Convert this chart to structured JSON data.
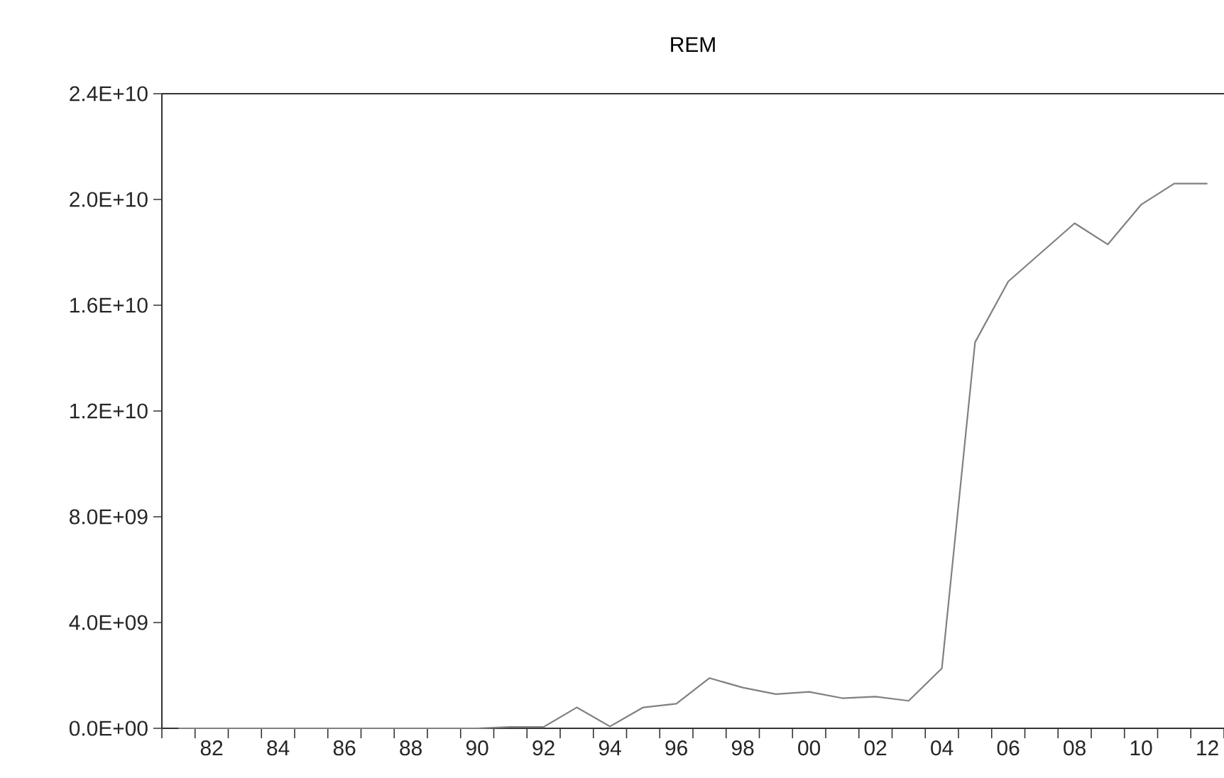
{
  "chart_data": {
    "type": "line",
    "title": "REM",
    "x": [
      1981,
      1982,
      1983,
      1984,
      1985,
      1986,
      1987,
      1988,
      1989,
      1990,
      1991,
      1992,
      1993,
      1994,
      1995,
      1996,
      1997,
      1998,
      1999,
      2000,
      2001,
      2002,
      2003,
      2004,
      2005,
      2006,
      2007,
      2008,
      2009,
      2010,
      2011,
      2012
    ],
    "series": [
      {
        "color": "#808080",
        "values": [
          0,
          0,
          0,
          0,
          0,
          0,
          0,
          0,
          0,
          0,
          50000000,
          50000000,
          790000000,
          70000000,
          790000000,
          930000000,
          1900000000,
          1540000000,
          1290000000,
          1380000000,
          1140000000,
          1200000000,
          1040000000,
          2270000000,
          14600000000,
          16900000000,
          18000000000,
          19100000000,
          18300000000,
          19800000000,
          20600000000,
          20600000000
        ]
      }
    ],
    "xlim": [
      1980.5,
      2012.5
    ],
    "xticks": [
      {
        "value": 1980.5,
        "label": null
      },
      {
        "value": 1981.5,
        "label": null
      },
      {
        "value": 1982,
        "label": "82"
      },
      {
        "value": 1982.5,
        "label": null
      },
      {
        "value": 1983.5,
        "label": null
      },
      {
        "value": 1984,
        "label": "84"
      },
      {
        "value": 1984.5,
        "label": null
      },
      {
        "value": 1985.5,
        "label": null
      },
      {
        "value": 1986,
        "label": "86"
      },
      {
        "value": 1986.5,
        "label": null
      },
      {
        "value": 1987.5,
        "label": null
      },
      {
        "value": 1988,
        "label": "88"
      },
      {
        "value": 1988.5,
        "label": null
      },
      {
        "value": 1989.5,
        "label": null
      },
      {
        "value": 1990,
        "label": "90"
      },
      {
        "value": 1990.5,
        "label": null
      },
      {
        "value": 1991.5,
        "label": null
      },
      {
        "value": 1992,
        "label": "92"
      },
      {
        "value": 1992.5,
        "label": null
      },
      {
        "value": 1993.5,
        "label": null
      },
      {
        "value": 1994,
        "label": "94"
      },
      {
        "value": 1994.5,
        "label": null
      },
      {
        "value": 1995.5,
        "label": null
      },
      {
        "value": 1996,
        "label": "96"
      },
      {
        "value": 1996.5,
        "label": null
      },
      {
        "value": 1997.5,
        "label": null
      },
      {
        "value": 1998,
        "label": "98"
      },
      {
        "value": 1998.5,
        "label": null
      },
      {
        "value": 1999.5,
        "label": null
      },
      {
        "value": 2000,
        "label": "00"
      },
      {
        "value": 2000.5,
        "label": null
      },
      {
        "value": 2001.5,
        "label": null
      },
      {
        "value": 2002,
        "label": "02"
      },
      {
        "value": 2002.5,
        "label": null
      },
      {
        "value": 2003.5,
        "label": null
      },
      {
        "value": 2004,
        "label": "04"
      },
      {
        "value": 2004.5,
        "label": null
      },
      {
        "value": 2005.5,
        "label": null
      },
      {
        "value": 2006,
        "label": "06"
      },
      {
        "value": 2006.5,
        "label": null
      },
      {
        "value": 2007.5,
        "label": null
      },
      {
        "value": 2008,
        "label": "08"
      },
      {
        "value": 2008.5,
        "label": null
      },
      {
        "value": 2009.5,
        "label": null
      },
      {
        "value": 2010,
        "label": "10"
      },
      {
        "value": 2010.5,
        "label": null
      },
      {
        "value": 2011.5,
        "label": null
      },
      {
        "value": 2012,
        "label": "12"
      },
      {
        "value": 2012.5,
        "label": null
      }
    ],
    "ylim": [
      0,
      24000000000
    ],
    "yticks": [
      {
        "value": 0,
        "label": "0.0E+00"
      },
      {
        "value": 4000000000,
        "label": "4.0E+09"
      },
      {
        "value": 8000000000,
        "label": "8.0E+09"
      },
      {
        "value": 12000000000,
        "label": "1.2E+10"
      },
      {
        "value": 16000000000,
        "label": "1.6E+10"
      },
      {
        "value": 20000000000,
        "label": "2.0E+10"
      },
      {
        "value": 24000000000,
        "label": "2.4E+10"
      }
    ]
  }
}
